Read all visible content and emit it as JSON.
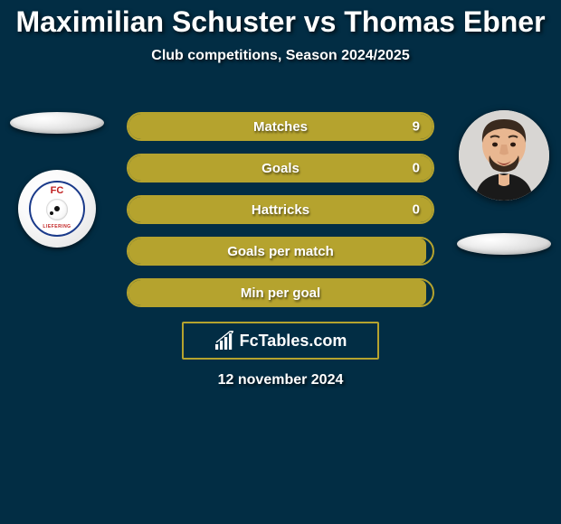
{
  "title": "Maximilian Schuster vs Thomas Ebner",
  "subtitle": "Club competitions, Season 2024/2025",
  "date": "12 november 2024",
  "footer_brand": "FcTables.com",
  "club_logo": {
    "top_text": "FC",
    "bottom_text": "LIEFERING"
  },
  "colors": {
    "background": "#022d44",
    "bar_fill": "#b5a32e",
    "bar_border": "#b5a32e",
    "footer_border": "#b5a32e",
    "text": "#ffffff"
  },
  "stats": [
    {
      "label": "Matches",
      "value": "9",
      "show_value": true,
      "fill": 1.0
    },
    {
      "label": "Goals",
      "value": "0",
      "show_value": true,
      "fill": 1.0
    },
    {
      "label": "Hattricks",
      "value": "0",
      "show_value": true,
      "fill": 1.0
    },
    {
      "label": "Goals per match",
      "value": "",
      "show_value": false,
      "fill": 0.98
    },
    {
      "label": "Min per goal",
      "value": "",
      "show_value": false,
      "fill": 0.98
    }
  ]
}
